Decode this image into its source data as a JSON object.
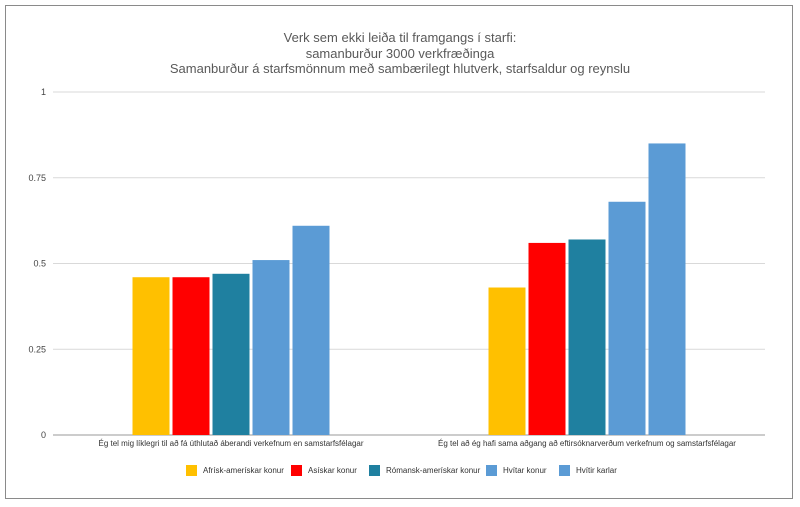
{
  "chart_data": {
    "type": "bar",
    "title": "Verk sem ekki leiða til framgangs í starfi:",
    "subtitle": "samanburður 3000 verkfræðinga",
    "subtitle2": "Samanburður á starfsmönnum með sambærilegt hlutverk, starfsaldur og reynslu",
    "categories": [
      "Ég tel mig líklegri til að fá úthlutað áberandi verkefnum en samstarfsfélagar",
      "Ég tel að ég hafi sama aðgang að eftirsóknarverðum verkefnum og samstarfsfélagar"
    ],
    "series": [
      {
        "name": "Afrísk-amerískar konur",
        "values": [
          0.46,
          0.43
        ],
        "color": "#FFC000"
      },
      {
        "name": "Asískar konur",
        "values": [
          0.46,
          0.56
        ],
        "color": "#FF0000"
      },
      {
        "name": "Rómansk-amerískar konur",
        "values": [
          0.47,
          0.57
        ],
        "color": "#1F80A0"
      },
      {
        "name": "Hvítar konur",
        "values": [
          0.51,
          0.68
        ],
        "color": "#5B9BD5"
      },
      {
        "name": "Hvítir karlar",
        "values": [
          0.61,
          0.85
        ],
        "color": "#5B9BD5"
      }
    ],
    "ylim": [
      0,
      1
    ],
    "yticks": [
      "0",
      "0.25",
      "0.5",
      "0.75",
      "1"
    ],
    "grid": true,
    "legend": "bottom"
  }
}
